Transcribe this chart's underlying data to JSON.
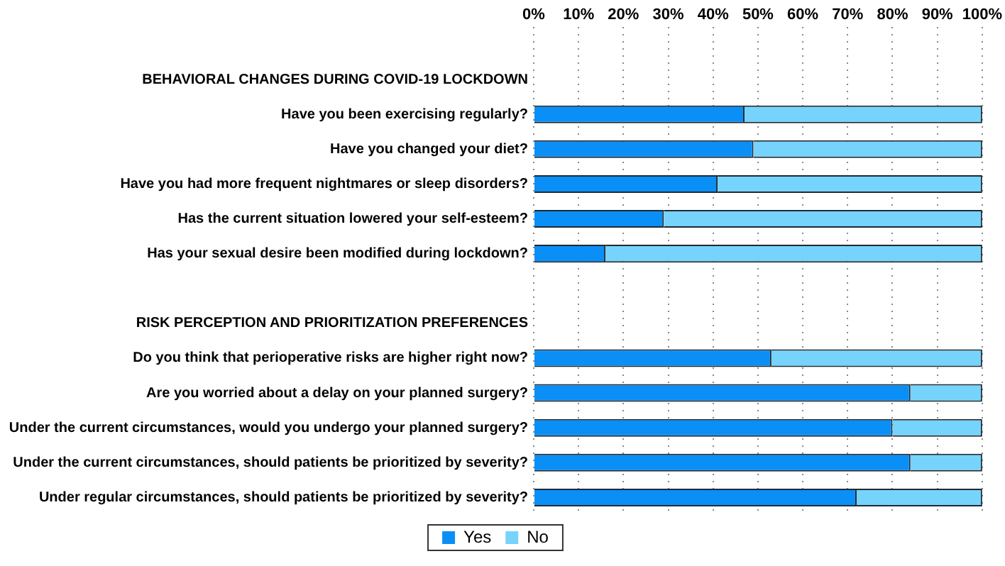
{
  "chart_data": {
    "type": "bar",
    "orientation": "horizontal",
    "stacked": true,
    "categories": [
      null,
      "BEHAVIORAL CHANGES DURING COVID-19 LOCKDOWN",
      "Have you been exercising regularly?",
      "Have you changed your diet?",
      "Have you had more frequent nightmares or sleep disorders?",
      "Has the current situation lowered your self-esteem?",
      "Has your sexual desire been modified during lockdown?",
      null,
      "RISK PERCEPTION AND PRIORITIZATION PREFERENCES",
      "Do you think that perioperative risks are higher right now?",
      "Are you worried about a delay on your planned surgery?",
      "Under the current circumstances, would you undergo your planned surgery?",
      "Under the current circumstances, should patients be prioritized by severity?",
      "Under regular circumstances, should patients be prioritized by severity?"
    ],
    "series": [
      {
        "name": "Yes",
        "color": "#0a8ff6",
        "values": [
          null,
          null,
          47,
          49,
          41,
          29,
          16,
          null,
          null,
          53,
          84,
          80,
          84,
          72
        ]
      },
      {
        "name": "No",
        "color": "#76d3fb",
        "values": [
          null,
          null,
          53,
          51,
          59,
          71,
          84,
          null,
          null,
          47,
          16,
          20,
          16,
          28
        ]
      }
    ],
    "xlim": [
      0,
      100
    ],
    "xticks": [
      {
        "value": 0,
        "label": "0%"
      },
      {
        "value": 10,
        "label": "10%"
      },
      {
        "value": 20,
        "label": "20%"
      },
      {
        "value": 30,
        "label": "30%"
      },
      {
        "value": 40,
        "label": "40%"
      },
      {
        "value": 50,
        "label": "50%"
      },
      {
        "value": 60,
        "label": "60%"
      },
      {
        "value": 70,
        "label": "70%"
      },
      {
        "value": 80,
        "label": "80%"
      },
      {
        "value": 90,
        "label": "90%"
      },
      {
        "value": 100,
        "label": "100%"
      }
    ],
    "grid": "x",
    "legend": "bottom"
  }
}
